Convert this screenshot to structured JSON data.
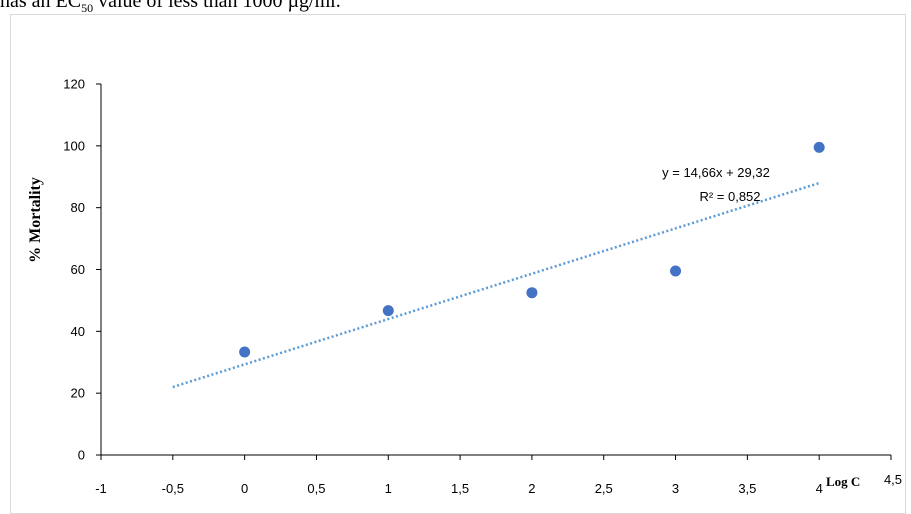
{
  "caption": {
    "before": "has an EC",
    "sub": "50",
    "after": " value of less than 1000 µg/ml."
  },
  "chart_data": {
    "type": "scatter",
    "xlabel": "Log C",
    "ylabel": "% Mortality",
    "xlim": [
      -1,
      4.5
    ],
    "ylim": [
      0,
      120
    ],
    "x_ticks": [
      "-1",
      "-0,5",
      "0",
      "0,5",
      "1",
      "1,5",
      "2",
      "2,5",
      "3",
      "3,5",
      "4",
      "4,5"
    ],
    "y_ticks": [
      "0",
      "20",
      "40",
      "60",
      "80",
      "100",
      "120"
    ],
    "x_tick_values": [
      -1,
      -0.5,
      0,
      0.5,
      1,
      1.5,
      2,
      2.5,
      3,
      3.5,
      4,
      4.5
    ],
    "y_tick_values": [
      0,
      20,
      40,
      60,
      80,
      100,
      120
    ],
    "points": [
      {
        "x": 0,
        "y": 33.3
      },
      {
        "x": 1,
        "y": 46.7
      },
      {
        "x": 2,
        "y": 52.5
      },
      {
        "x": 3,
        "y": 59.5
      },
      {
        "x": 4,
        "y": 99.5
      }
    ],
    "trendline": {
      "slope": 14.66,
      "intercept": 29.32,
      "x_start": -0.5,
      "x_end": 4,
      "equation": "y = 14,66x + 29,32",
      "r2": "R² = 0,852"
    },
    "grid": false,
    "legend": "none",
    "colors": {
      "marker": "#4472c4",
      "trendline": "#5b9bd5"
    }
  }
}
